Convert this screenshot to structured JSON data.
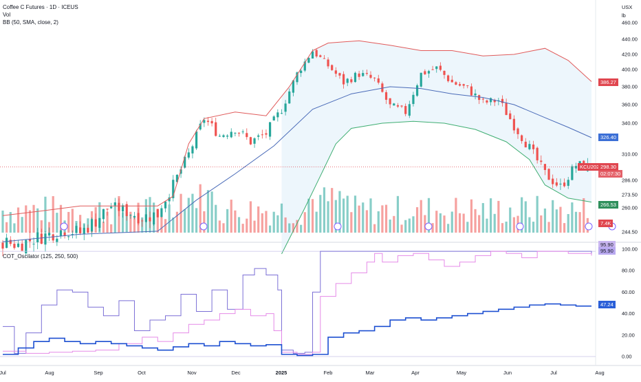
{
  "header": {
    "title": "Coffee C Futures · 1D · ICEUS",
    "vol_label": "Vol",
    "bb_label": "BB (50, SMA, close, 2)",
    "currency": "USX",
    "unit": "lb",
    "oscillator_label": "COT_Oscilator (125, 250, 500)"
  },
  "colors": {
    "up": "#26a69a",
    "down": "#ef5350",
    "bb_upper": "#e05a5a",
    "bb_basis": "#4a6bb8",
    "bb_lower": "#3fae72",
    "osc_125": "#7b6fd6",
    "osc_250": "#e58ae8",
    "osc_500": "#1c4fd1"
  },
  "price_tags": {
    "upper": "386.27",
    "basis": "326.40",
    "last": "298.30",
    "symbol": "KCU2025",
    "timer": "02:07:30",
    "lower": "266.53",
    "volume": "7.4K"
  },
  "osc_tags": {
    "a": "95.90",
    "b": "95.90",
    "c": "47.24"
  },
  "chart_data": [
    {
      "type": "candlestick",
      "title": "Coffee C Futures · 1D · ICEUS",
      "ylabel": "USX / lb",
      "y_ticks": [
        "460.00",
        "440.00",
        "420.00",
        "400.00",
        "380.00",
        "360.00",
        "340.00",
        "310.00",
        "286.00",
        "273.50",
        "260.00",
        "244.50"
      ],
      "x_ticks": [
        "Jul",
        "Aug",
        "Sep",
        "Oct",
        "Nov",
        "Dec",
        "2025",
        "Feb",
        "Mar",
        "Apr",
        "May",
        "Jun",
        "Jul",
        "Aug"
      ],
      "series": [
        {
          "name": "close",
          "points": [
            [
              0,
              238
            ],
            [
              4,
              236
            ],
            [
              8,
              240
            ],
            [
              12,
              243
            ],
            [
              16,
              246
            ],
            [
              20,
              244
            ],
            [
              24,
              252
            ],
            [
              28,
              262
            ],
            [
              32,
              258
            ],
            [
              36,
              254
            ],
            [
              40,
              256
            ],
            [
              44,
              282
            ],
            [
              48,
              310
            ],
            [
              52,
              345
            ],
            [
              56,
              328
            ],
            [
              60,
              335
            ],
            [
              64,
              322
            ],
            [
              68,
              330
            ],
            [
              72,
              355
            ],
            [
              76,
              395
            ],
            [
              80,
              425
            ],
            [
              84,
              405
            ],
            [
              88,
              385
            ],
            [
              92,
              395
            ],
            [
              96,
              388
            ],
            [
              100,
              358
            ],
            [
              104,
              352
            ],
            [
              108,
              395
            ],
            [
              112,
              402
            ],
            [
              116,
              385
            ],
            [
              120,
              378
            ],
            [
              124,
              362
            ],
            [
              128,
              365
            ],
            [
              132,
              338
            ],
            [
              136,
              316
            ],
            [
              140,
              292
            ],
            [
              144,
              280
            ],
            [
              148,
              300
            ],
            [
              152,
              298
            ]
          ]
        },
        {
          "name": "BB upper",
          "points": [
            [
              0,
              255
            ],
            [
              10,
              258
            ],
            [
              20,
              262
            ],
            [
              30,
              262
            ],
            [
              40,
              262
            ],
            [
              44,
              272
            ],
            [
              48,
              320
            ],
            [
              52,
              345
            ],
            [
              60,
              352
            ],
            [
              68,
              348
            ],
            [
              74,
              380
            ],
            [
              80,
              425
            ],
            [
              84,
              435
            ],
            [
              92,
              438
            ],
            [
              100,
              432
            ],
            [
              108,
              425
            ],
            [
              116,
              425
            ],
            [
              124,
              418
            ],
            [
              132,
              420
            ],
            [
              140,
              428
            ],
            [
              146,
              412
            ],
            [
              152,
              386
            ]
          ]
        },
        {
          "name": "BB basis",
          "points": [
            [
              0,
              238
            ],
            [
              20,
              243
            ],
            [
              40,
              245
            ],
            [
              50,
              268
            ],
            [
              60,
              292
            ],
            [
              70,
              318
            ],
            [
              80,
              355
            ],
            [
              90,
              372
            ],
            [
              100,
              380
            ],
            [
              108,
              378
            ],
            [
              116,
              372
            ],
            [
              124,
              368
            ],
            [
              132,
              360
            ],
            [
              140,
              346
            ],
            [
              146,
              336
            ],
            [
              152,
              326
            ]
          ]
        },
        {
          "name": "BB lower",
          "points": [
            [
              72,
              230
            ],
            [
              78,
              260
            ],
            [
              82,
              290
            ],
            [
              86,
              320
            ],
            [
              90,
              335
            ],
            [
              98,
              340
            ],
            [
              106,
              342
            ],
            [
              114,
              340
            ],
            [
              122,
              334
            ],
            [
              130,
              322
            ],
            [
              136,
              305
            ],
            [
              140,
              282
            ],
            [
              146,
              270
            ],
            [
              152,
              266
            ]
          ]
        }
      ],
      "volume_last": "7.4K"
    },
    {
      "type": "line",
      "title": "COT_Oscilator (125, 250, 500)",
      "y_ticks": [
        "100.00",
        "80.00",
        "60.00",
        "40.00",
        "20.00",
        "0.00"
      ],
      "ylim": [
        0,
        100
      ],
      "series": [
        {
          "name": "125",
          "points": [
            [
              0,
              28
            ],
            [
              3,
              3
            ],
            [
              6,
              22
            ],
            [
              10,
              48
            ],
            [
              14,
              62
            ],
            [
              18,
              60
            ],
            [
              22,
              46
            ],
            [
              26,
              38
            ],
            [
              30,
              52
            ],
            [
              34,
              24
            ],
            [
              38,
              34
            ],
            [
              42,
              38
            ],
            [
              46,
              58
            ],
            [
              50,
              42
            ],
            [
              54,
              62
            ],
            [
              58,
              44
            ],
            [
              62,
              76
            ],
            [
              65,
              82
            ],
            [
              68,
              76
            ],
            [
              71,
              62
            ],
            [
              72,
              6
            ],
            [
              75,
              3
            ],
            [
              78,
              4
            ],
            [
              80,
              60
            ],
            [
              82,
              98
            ],
            [
              86,
              98
            ],
            [
              90,
              98
            ],
            [
              94,
              98
            ],
            [
              98,
              98
            ],
            [
              102,
              98
            ],
            [
              106,
              98
            ],
            [
              110,
              98
            ],
            [
              114,
              98
            ],
            [
              118,
              98
            ],
            [
              122,
              98
            ],
            [
              126,
              98
            ],
            [
              130,
              98
            ],
            [
              134,
              98
            ],
            [
              138,
              98
            ],
            [
              142,
              98
            ],
            [
              146,
              98
            ],
            [
              150,
              98
            ],
            [
              152,
              96
            ]
          ]
        },
        {
          "name": "250",
          "points": [
            [
              0,
              5
            ],
            [
              6,
              3
            ],
            [
              12,
              4
            ],
            [
              18,
              5
            ],
            [
              24,
              6
            ],
            [
              30,
              12
            ],
            [
              36,
              18
            ],
            [
              40,
              14
            ],
            [
              44,
              22
            ],
            [
              48,
              30
            ],
            [
              52,
              34
            ],
            [
              56,
              40
            ],
            [
              60,
              44
            ],
            [
              64,
              38
            ],
            [
              68,
              40
            ],
            [
              70,
              24
            ],
            [
              72,
              4
            ],
            [
              76,
              2
            ],
            [
              80,
              4
            ],
            [
              82,
              56
            ],
            [
              86,
              68
            ],
            [
              90,
              78
            ],
            [
              94,
              88
            ],
            [
              96,
              96
            ],
            [
              98,
              88
            ],
            [
              102,
              94
            ],
            [
              106,
              96
            ],
            [
              110,
              90
            ],
            [
              114,
              84
            ],
            [
              118,
              88
            ],
            [
              122,
              94
            ],
            [
              126,
              98
            ],
            [
              130,
              96
            ],
            [
              134,
              92
            ],
            [
              138,
              98
            ],
            [
              142,
              98
            ],
            [
              146,
              96
            ],
            [
              152,
              94
            ]
          ]
        },
        {
          "name": "500",
          "points": [
            [
              0,
              2
            ],
            [
              4,
              8
            ],
            [
              8,
              14
            ],
            [
              12,
              17
            ],
            [
              16,
              14
            ],
            [
              20,
              12
            ],
            [
              24,
              14
            ],
            [
              28,
              12
            ],
            [
              32,
              10
            ],
            [
              36,
              8
            ],
            [
              40,
              6
            ],
            [
              44,
              9
            ],
            [
              48,
              12
            ],
            [
              52,
              10
            ],
            [
              56,
              14
            ],
            [
              60,
              12
            ],
            [
              64,
              10
            ],
            [
              68,
              11
            ],
            [
              72,
              2
            ],
            [
              76,
              1
            ],
            [
              80,
              2
            ],
            [
              84,
              18
            ],
            [
              88,
              22
            ],
            [
              92,
              24
            ],
            [
              96,
              28
            ],
            [
              100,
              34
            ],
            [
              104,
              36
            ],
            [
              108,
              34
            ],
            [
              112,
              36
            ],
            [
              116,
              38
            ],
            [
              120,
              40
            ],
            [
              124,
              42
            ],
            [
              128,
              44
            ],
            [
              132,
              46
            ],
            [
              136,
              48
            ],
            [
              140,
              49
            ],
            [
              144,
              48
            ],
            [
              148,
              47
            ],
            [
              152,
              47
            ]
          ]
        }
      ]
    }
  ]
}
